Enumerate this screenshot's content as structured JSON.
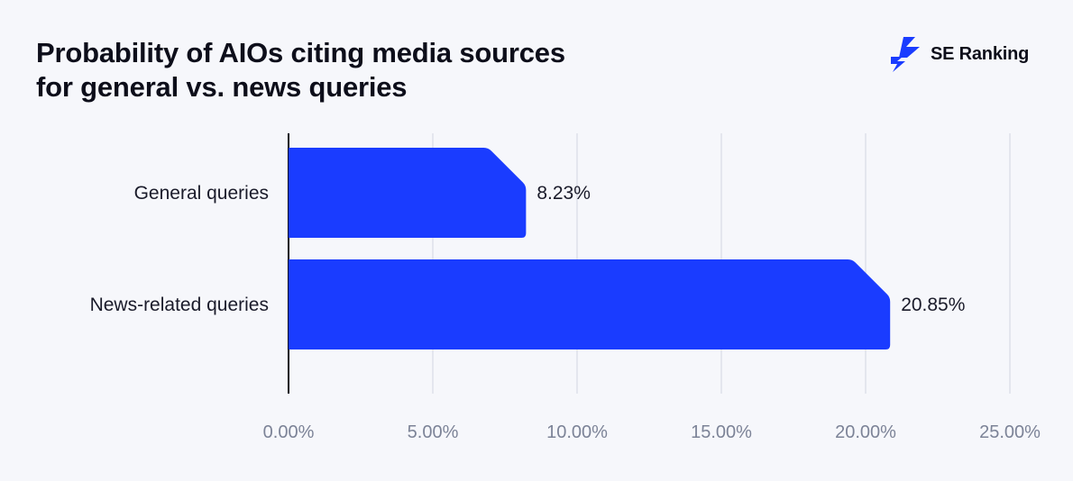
{
  "brand": {
    "name": "SE Ranking",
    "logo_icon": "bolt-logo-icon",
    "color": "#1a3cff"
  },
  "chart_data": {
    "type": "bar",
    "orientation": "horizontal",
    "title_lines": [
      "Probability of AIOs citing media sources",
      "for general vs. news queries"
    ],
    "categories": [
      "General queries",
      "News-related queries"
    ],
    "values": [
      8.23,
      20.85
    ],
    "value_labels": [
      "8.23%",
      "20.85%"
    ],
    "xlim": [
      0,
      25
    ],
    "x_ticks": [
      0,
      5,
      10,
      15,
      20,
      25
    ],
    "x_tick_labels": [
      "0.00%",
      "5.00%",
      "10.00%",
      "15.00%",
      "20.00%",
      "25.00%"
    ],
    "grid": true,
    "legend": "none",
    "bar_color": "#1a3cff",
    "background_color": "#f6f7fb"
  }
}
